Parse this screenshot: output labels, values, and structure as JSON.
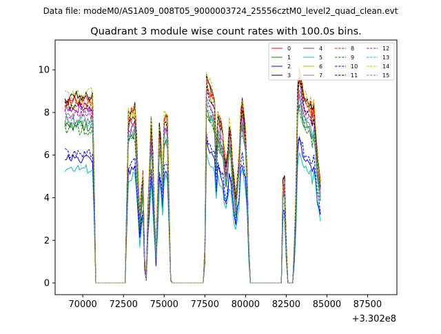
{
  "chart_data": {
    "type": "line",
    "suptitle": "Data file: modeM0/AS1A09_008T05_9000003724_25556cztM0_level2_quad_clean.evt",
    "title": "Quadrant 3 module wise count rates with 100.0s bins.",
    "xlabel": "",
    "ylabel": "",
    "x_offset_label": "+3.302e8",
    "xlim": [
      68300,
      89300
    ],
    "ylim": [
      -0.55,
      11.4
    ],
    "xticks": [
      70000,
      72500,
      75000,
      77500,
      80000,
      82500,
      85000,
      87500
    ],
    "xtick_labels": [
      "70000",
      "72500",
      "75000",
      "77500",
      "80000",
      "82500",
      "85000",
      "87500"
    ],
    "yticks": [
      0,
      2,
      4,
      6,
      8,
      10
    ],
    "ytick_labels": [
      "0",
      "2",
      "4",
      "6",
      "8",
      "10"
    ],
    "x_start": 68900,
    "x_step": 100,
    "envelope": [
      [
        8,
        1.0
      ],
      [
        17,
        1.0
      ],
      [
        18,
        0.55
      ],
      [
        19,
        0.0
      ],
      [
        37,
        0.0
      ],
      [
        38,
        0.45
      ],
      [
        39,
        0.9
      ],
      [
        43,
        0.95
      ],
      [
        44,
        0.78
      ],
      [
        45,
        0.55
      ],
      [
        46,
        0.35
      ],
      [
        47,
        0.48
      ],
      [
        48,
        0.58
      ],
      [
        49,
        0.12
      ],
      [
        50,
        0.02
      ],
      [
        51,
        0.38
      ],
      [
        52,
        0.62
      ],
      [
        53,
        0.88
      ],
      [
        54,
        0.68
      ],
      [
        55,
        0.38
      ],
      [
        56,
        0.17
      ],
      [
        57,
        0.45
      ],
      [
        58,
        0.85
      ],
      [
        59,
        0.78
      ],
      [
        60,
        0.58
      ],
      [
        61,
        0.88
      ],
      [
        62,
        0.92
      ],
      [
        63,
        0.88
      ],
      [
        64,
        0.45
      ],
      [
        65,
        0.02
      ],
      [
        66,
        0.0
      ],
      [
        85,
        0.0
      ],
      [
        86,
        0.18
      ],
      [
        87,
        1.12
      ],
      [
        88,
        1.08
      ],
      [
        92,
        0.98
      ],
      [
        93,
        0.72
      ],
      [
        94,
        0.92
      ],
      [
        95,
        0.88
      ],
      [
        97,
        0.82
      ],
      [
        98,
        0.7
      ],
      [
        99,
        0.62
      ],
      [
        100,
        0.7
      ],
      [
        101,
        0.85
      ],
      [
        102,
        0.8
      ],
      [
        103,
        0.65
      ],
      [
        104,
        0.55
      ],
      [
        105,
        0.45
      ],
      [
        106,
        0.58
      ],
      [
        107,
        0.68
      ],
      [
        108,
        0.92
      ],
      [
        109,
        0.98
      ],
      [
        110,
        0.9
      ],
      [
        111,
        0.82
      ],
      [
        112,
        0.6
      ],
      [
        113,
        0.2
      ],
      [
        114,
        0.0
      ],
      [
        133,
        0.0
      ],
      [
        134,
        0.55
      ],
      [
        135,
        0.55
      ],
      [
        136,
        0.2
      ],
      [
        137,
        0.0
      ],
      [
        140,
        0.0
      ],
      [
        141,
        0.2
      ],
      [
        142,
        0.5
      ],
      [
        143,
        1.05
      ],
      [
        144,
        1.15
      ],
      [
        145,
        1.1
      ],
      [
        146,
        1.05
      ],
      [
        147,
        1.0
      ],
      [
        149,
        0.98
      ],
      [
        151,
        0.96
      ],
      [
        152,
        0.9
      ],
      [
        153,
        0.95
      ],
      [
        154,
        0.85
      ],
      [
        155,
        0.7
      ],
      [
        156,
        0.62
      ],
      [
        157,
        0.55
      ]
    ],
    "series": [
      {
        "name": "0",
        "color": "#ff0000",
        "style": "solid",
        "base": 8.7
      },
      {
        "name": "1",
        "color": "#008000",
        "style": "solid",
        "base": 7.4
      },
      {
        "name": "2",
        "color": "#0000ff",
        "style": "solid",
        "base": 5.85
      },
      {
        "name": "3",
        "color": "#000000",
        "style": "solid",
        "base": 8.75
      },
      {
        "name": "4",
        "color": "#bf00bf",
        "style": "solid",
        "base": 8.2
      },
      {
        "name": "5",
        "color": "#00bfbf",
        "style": "solid",
        "base": 5.35
      },
      {
        "name": "6",
        "color": "#bfbf00",
        "style": "solid",
        "base": 8.4
      },
      {
        "name": "7",
        "color": "#808080",
        "style": "solid",
        "base": 7.7
      },
      {
        "name": "8",
        "color": "#ff0000",
        "style": "dashed",
        "base": 8.5
      },
      {
        "name": "9",
        "color": "#008000",
        "style": "dashed",
        "base": 7.2
      },
      {
        "name": "10",
        "color": "#0000ff",
        "style": "dashed",
        "base": 6.1
      },
      {
        "name": "11",
        "color": "#000000",
        "style": "dashed",
        "base": 8.3
      },
      {
        "name": "12",
        "color": "#bf00bf",
        "style": "dashed",
        "base": 7.95
      },
      {
        "name": "13",
        "color": "#00bfbf",
        "style": "dashed",
        "base": 7.6
      },
      {
        "name": "14",
        "color": "#bfbf00",
        "style": "dashed",
        "base": 8.9
      },
      {
        "name": "15",
        "color": "#808080",
        "style": "dashed",
        "base": 7.5
      }
    ],
    "legend_location": "top-right",
    "legend_columns": 4
  }
}
